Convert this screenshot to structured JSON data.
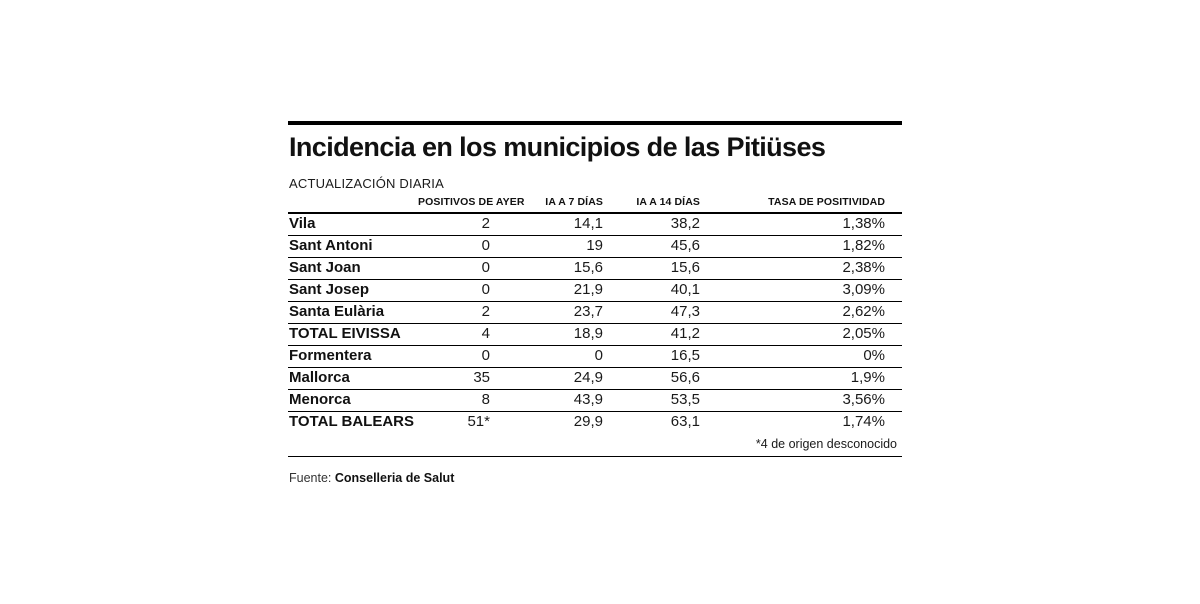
{
  "colors": {
    "background": "#ffffff",
    "text": "#111111",
    "rule": "#000000"
  },
  "chart_data": {
    "type": "table",
    "title": "Incidencia en los municipios de las Pitiüses",
    "subtitle": "ACTUALIZACIÓN DIARIA",
    "columns": [
      "",
      "POSITIVOS DE AYER",
      "IA A 7 DÍAS",
      "IA A 14 DÍAS",
      "TASA DE POSITIVIDAD"
    ],
    "rows": [
      {
        "name": "Vila",
        "positivos_ayer": "2",
        "ia_7_dias": "14,1",
        "ia_14_dias": "38,2",
        "tasa_positividad": "1,38%"
      },
      {
        "name": "Sant Antoni",
        "positivos_ayer": "0",
        "ia_7_dias": "19",
        "ia_14_dias": "45,6",
        "tasa_positividad": "1,82%"
      },
      {
        "name": "Sant Joan",
        "positivos_ayer": "0",
        "ia_7_dias": "15,6",
        "ia_14_dias": "15,6",
        "tasa_positividad": "2,38%"
      },
      {
        "name": "Sant Josep",
        "positivos_ayer": "0",
        "ia_7_dias": "21,9",
        "ia_14_dias": "40,1",
        "tasa_positividad": "3,09%"
      },
      {
        "name": "Santa Eulària",
        "positivos_ayer": "2",
        "ia_7_dias": "23,7",
        "ia_14_dias": "47,3",
        "tasa_positividad": "2,62%"
      },
      {
        "name": "TOTAL EIVISSA",
        "positivos_ayer": "4",
        "ia_7_dias": "18,9",
        "ia_14_dias": "41,2",
        "tasa_positividad": "2,05%"
      },
      {
        "name": "Formentera",
        "positivos_ayer": "0",
        "ia_7_dias": "0",
        "ia_14_dias": "16,5",
        "tasa_positividad": "0%"
      },
      {
        "name": "Mallorca",
        "positivos_ayer": "35",
        "ia_7_dias": "24,9",
        "ia_14_dias": "56,6",
        "tasa_positividad": "1,9%"
      },
      {
        "name": "Menorca",
        "positivos_ayer": "8",
        "ia_7_dias": "43,9",
        "ia_14_dias": "53,5",
        "tasa_positividad": "3,56%"
      },
      {
        "name": "TOTAL BALEARS",
        "positivos_ayer": "51*",
        "ia_7_dias": "29,9",
        "ia_14_dias": "63,1",
        "tasa_positividad": "1,74%"
      }
    ],
    "footnote": "*4 de origen desconocido",
    "source_label": "Fuente:",
    "source_value": "Conselleria de Salut",
    "layout": "newspaper table, numeric columns right-aligned, horizontal black rules between rows, legend/grid none"
  }
}
